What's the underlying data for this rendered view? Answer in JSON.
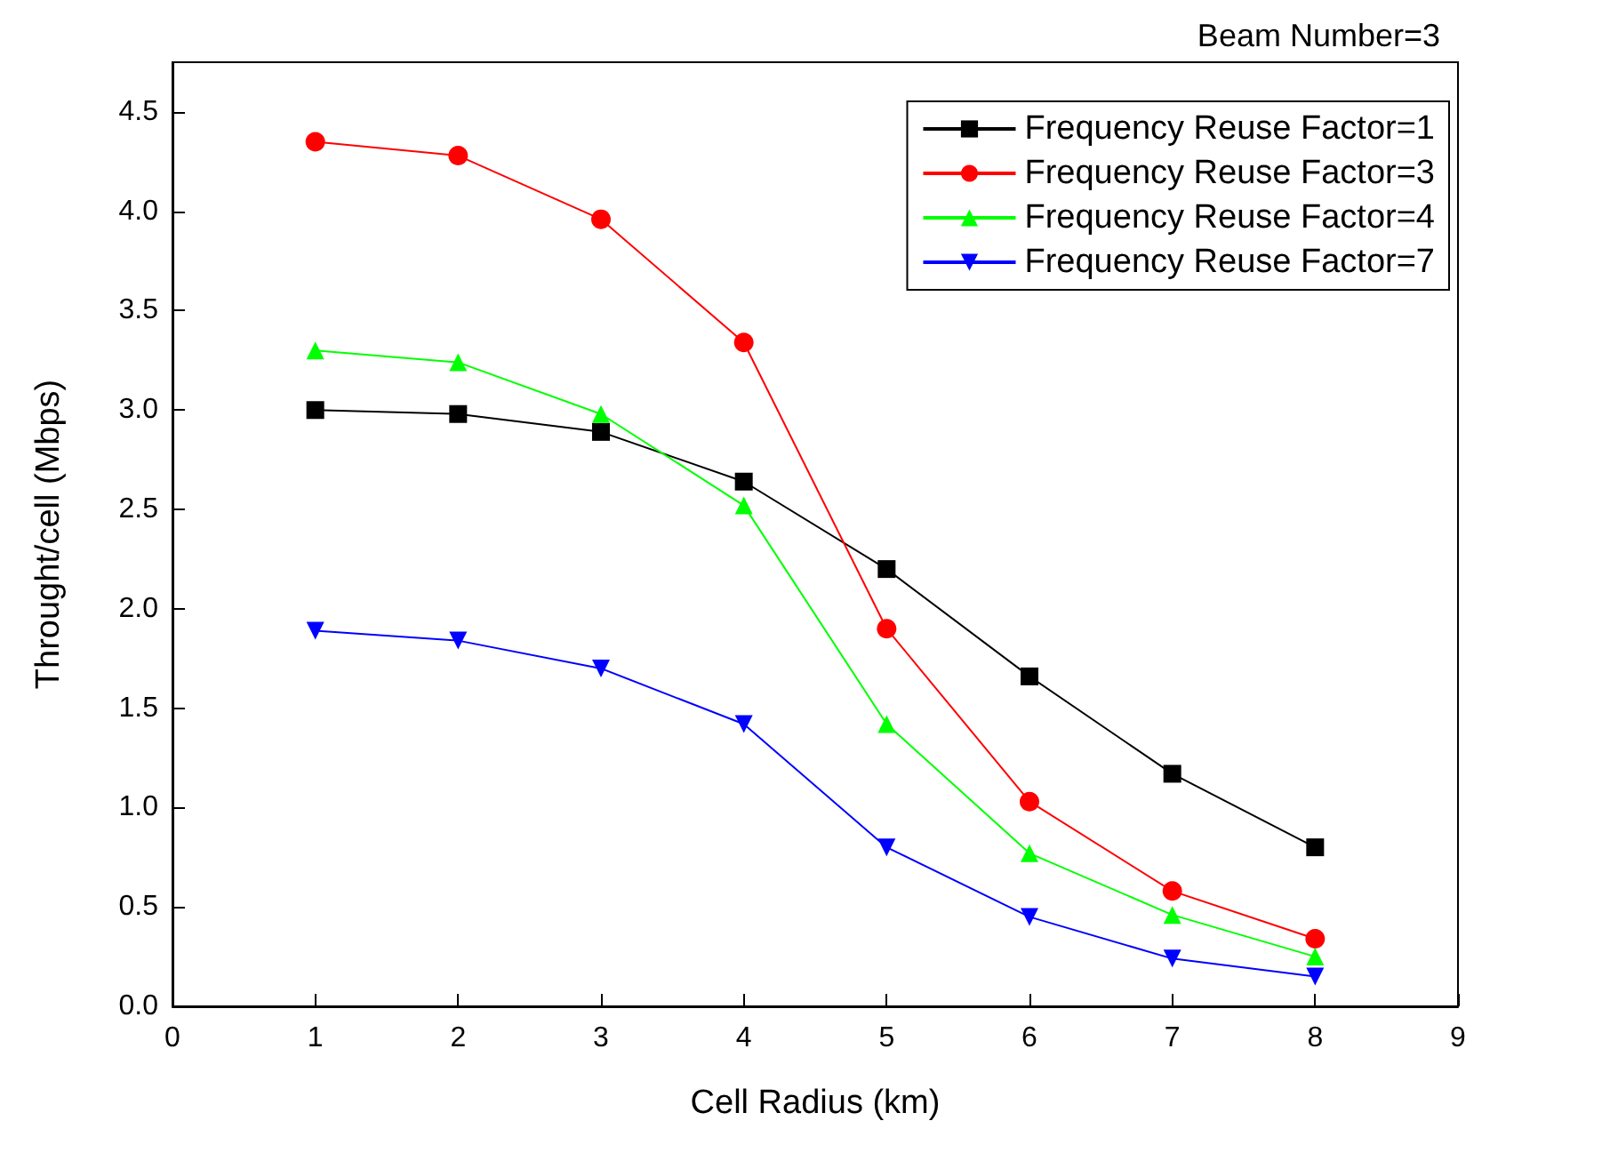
{
  "chart_data": {
    "type": "line",
    "title": "Beam Number=3",
    "xlabel": "Cell Radius (km)",
    "ylabel": "Throught/cell (Mbps)",
    "x": [
      1,
      2,
      3,
      4,
      5,
      6,
      7,
      8
    ],
    "series": [
      {
        "name": "Frequency Reuse Factor=1",
        "color": "#000000",
        "marker": "square",
        "values": [
          3.0,
          2.98,
          2.89,
          2.64,
          2.2,
          1.66,
          1.17,
          0.8
        ]
      },
      {
        "name": "Frequency Reuse Factor=3",
        "color": "#ff0000",
        "marker": "circle",
        "values": [
          4.35,
          4.28,
          3.96,
          3.34,
          1.9,
          1.03,
          0.58,
          0.34
        ]
      },
      {
        "name": "Frequency Reuse Factor=4",
        "color": "#00ff00",
        "marker": "triangle",
        "values": [
          3.3,
          3.24,
          2.98,
          2.52,
          1.42,
          0.77,
          0.46,
          0.25
        ]
      },
      {
        "name": "Frequency Reuse Factor=7",
        "color": "#0000ff",
        "marker": "triangle-down",
        "values": [
          1.89,
          1.84,
          1.7,
          1.42,
          0.8,
          0.45,
          0.24,
          0.15
        ]
      }
    ],
    "xlim": [
      0,
      9
    ],
    "xticks": [
      0,
      1,
      2,
      3,
      4,
      5,
      6,
      7,
      8,
      9
    ],
    "ylim": [
      0,
      4.75
    ],
    "yticks": [
      {
        "value": 0,
        "label": "0.0"
      },
      0.5,
      {
        "value": 1,
        "label": "1.0"
      },
      1.5,
      {
        "value": 2,
        "label": "2.0"
      },
      2.5,
      {
        "value": 3,
        "label": "3.0"
      },
      3.5,
      {
        "value": 4,
        "label": "4.0"
      },
      4.5
    ],
    "grid": false,
    "legend": "top right",
    "line_style": "solid"
  }
}
